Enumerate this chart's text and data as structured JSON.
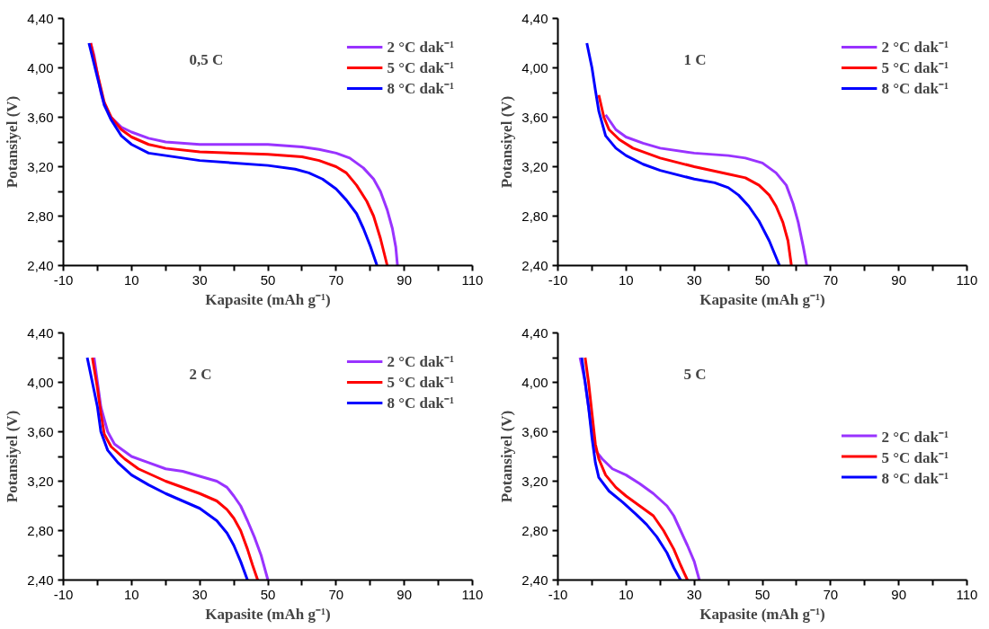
{
  "chart_data": [
    {
      "type": "line",
      "xlabel": "Kapasite (mAh g⁻¹)",
      "ylabel": "Potansiyel (V)",
      "annotations": [
        "0,5 C"
      ],
      "legend": "top right",
      "grid": false,
      "xlim": [
        -10,
        110
      ],
      "ylim": [
        2.4,
        4.4
      ],
      "xticks": [
        -10,
        {
          "value": 0,
          "label": null
        },
        10,
        {
          "value": 20,
          "label": null
        },
        30,
        {
          "value": 40,
          "label": null
        },
        50,
        {
          "value": 60,
          "label": null
        },
        70,
        {
          "value": 80,
          "label": null
        },
        90,
        {
          "value": 100,
          "label": null
        },
        110
      ],
      "yticks": [
        {
          "value": 2.4,
          "label": "2,40"
        },
        {
          "value": 2.6,
          "label": null
        },
        {
          "value": 2.8,
          "label": "2,80"
        },
        {
          "value": 3.0,
          "label": null
        },
        {
          "value": 3.2,
          "label": "3,20"
        },
        {
          "value": 3.4,
          "label": null
        },
        {
          "value": 3.6,
          "label": "3,60"
        },
        {
          "value": 3.8,
          "label": null
        },
        {
          "value": 4.0,
          "label": "4,00"
        },
        {
          "value": 4.2,
          "label": null
        },
        {
          "value": 4.4,
          "label": "4,40"
        }
      ],
      "series": [
        {
          "name": "2 °C dak⁻¹",
          "color": "#9933ff",
          "x": [
            -2,
            -1,
            0,
            1,
            2,
            4,
            7,
            10,
            15,
            20,
            30,
            50,
            60,
            65,
            70,
            74,
            78,
            81,
            83,
            85,
            86.5,
            87.5,
            88
          ],
          "values": [
            4.2,
            4.1,
            3.95,
            3.8,
            3.7,
            3.6,
            3.52,
            3.48,
            3.43,
            3.4,
            3.38,
            3.38,
            3.36,
            3.34,
            3.31,
            3.27,
            3.19,
            3.1,
            3.0,
            2.85,
            2.7,
            2.55,
            2.4
          ]
        },
        {
          "name": "5 °C dak⁻¹",
          "color": "#ff0000",
          "x": [
            -2,
            0,
            2,
            4,
            7,
            10,
            15,
            20,
            30,
            50,
            60,
            65,
            70,
            73,
            76,
            79,
            81,
            83,
            85
          ],
          "values": [
            4.2,
            3.95,
            3.72,
            3.6,
            3.5,
            3.44,
            3.38,
            3.35,
            3.32,
            3.3,
            3.28,
            3.25,
            3.2,
            3.15,
            3.05,
            2.92,
            2.8,
            2.62,
            2.4
          ]
        },
        {
          "name": "8 °C dak⁻¹",
          "color": "#0000ff",
          "x": [
            -2.5,
            0,
            2,
            4,
            7,
            10,
            15,
            20,
            30,
            50,
            58,
            62,
            66,
            70,
            73,
            76,
            78,
            80,
            82
          ],
          "values": [
            4.2,
            3.92,
            3.7,
            3.58,
            3.45,
            3.38,
            3.31,
            3.29,
            3.25,
            3.21,
            3.18,
            3.15,
            3.1,
            3.02,
            2.93,
            2.82,
            2.7,
            2.56,
            2.4
          ]
        }
      ]
    },
    {
      "type": "line",
      "xlabel": "Kapasite (mAh g⁻¹)",
      "ylabel": "Potansiyel (V)",
      "annotations": [
        "1 C"
      ],
      "legend": "top right",
      "grid": false,
      "xlim": [
        -10,
        110
      ],
      "ylim": [
        2.4,
        4.4
      ],
      "xticks": [
        -10,
        {
          "value": 0,
          "label": null
        },
        10,
        {
          "value": 20,
          "label": null
        },
        30,
        {
          "value": 40,
          "label": null
        },
        50,
        {
          "value": 60,
          "label": null
        },
        70,
        {
          "value": 80,
          "label": null
        },
        90,
        {
          "value": 100,
          "label": null
        },
        110
      ],
      "yticks": [
        {
          "value": 2.4,
          "label": "2,40"
        },
        {
          "value": 2.6,
          "label": null
        },
        {
          "value": 2.8,
          "label": "2,80"
        },
        {
          "value": 3.0,
          "label": null
        },
        {
          "value": 3.2,
          "label": "3,20"
        },
        {
          "value": 3.4,
          "label": null
        },
        {
          "value": 3.6,
          "label": "3,60"
        },
        {
          "value": 3.8,
          "label": null
        },
        {
          "value": 4.0,
          "label": "4,00"
        },
        {
          "value": 4.2,
          "label": null
        },
        {
          "value": 4.4,
          "label": "4,40"
        }
      ],
      "series": [
        {
          "name": "2 °C dak⁻¹",
          "color": "#9933ff",
          "x": [
            4,
            7,
            10,
            15,
            20,
            30,
            40,
            45,
            50,
            54,
            57,
            59,
            60.5,
            62,
            63
          ],
          "values": [
            3.62,
            3.5,
            3.44,
            3.39,
            3.35,
            3.31,
            3.29,
            3.27,
            3.23,
            3.15,
            3.05,
            2.9,
            2.75,
            2.55,
            2.4
          ]
        },
        {
          "name": "5 °C dak⁻¹",
          "color": "#ff0000",
          "x": [
            2,
            3.5,
            5,
            8,
            12,
            20,
            30,
            40,
            45,
            49,
            52,
            54,
            56,
            57.5,
            58.5
          ],
          "values": [
            3.78,
            3.6,
            3.5,
            3.42,
            3.35,
            3.27,
            3.2,
            3.14,
            3.11,
            3.05,
            2.97,
            2.88,
            2.75,
            2.6,
            2.4
          ]
        },
        {
          "name": "8 °C dak⁻¹",
          "color": "#0000ff",
          "x": [
            -1.5,
            0,
            1,
            2,
            4,
            7,
            10,
            15,
            20,
            30,
            36,
            40,
            43,
            46,
            49,
            52,
            55
          ],
          "values": [
            4.2,
            4.0,
            3.82,
            3.65,
            3.45,
            3.35,
            3.29,
            3.22,
            3.17,
            3.1,
            3.07,
            3.03,
            2.97,
            2.88,
            2.76,
            2.6,
            2.4
          ]
        }
      ]
    },
    {
      "type": "line",
      "xlabel": "Kapasite (mAh g⁻¹)",
      "ylabel": "Potansiyel (V)",
      "annotations": [
        "2 C"
      ],
      "legend": "top right",
      "grid": false,
      "xlim": [
        -10,
        110
      ],
      "ylim": [
        2.4,
        4.4
      ],
      "xticks": [
        -10,
        {
          "value": 0,
          "label": null
        },
        10,
        {
          "value": 20,
          "label": null
        },
        30,
        {
          "value": 40,
          "label": null
        },
        50,
        {
          "value": 60,
          "label": null
        },
        70,
        {
          "value": 80,
          "label": null
        },
        90,
        {
          "value": 100,
          "label": null
        },
        110
      ],
      "yticks": [
        {
          "value": 2.4,
          "label": "2,40"
        },
        {
          "value": 2.6,
          "label": null
        },
        {
          "value": 2.8,
          "label": "2,80"
        },
        {
          "value": 3.0,
          "label": null
        },
        {
          "value": 3.2,
          "label": "3,20"
        },
        {
          "value": 3.4,
          "label": null
        },
        {
          "value": 3.6,
          "label": "3,60"
        },
        {
          "value": 3.8,
          "label": null
        },
        {
          "value": 4.0,
          "label": "4,00"
        },
        {
          "value": 4.2,
          "label": null
        },
        {
          "value": 4.4,
          "label": "4,40"
        }
      ],
      "series": [
        {
          "name": "2 °C dak⁻¹",
          "color": "#9933ff",
          "x": [
            -1,
            0,
            1,
            3,
            5,
            10,
            15,
            20,
            25,
            30,
            35,
            38,
            40,
            42,
            44,
            46,
            48,
            50
          ],
          "values": [
            4.2,
            4.0,
            3.8,
            3.6,
            3.5,
            3.4,
            3.35,
            3.3,
            3.28,
            3.24,
            3.2,
            3.15,
            3.08,
            3.0,
            2.88,
            2.75,
            2.6,
            2.4
          ]
        },
        {
          "name": "5 °C dak⁻¹",
          "color": "#ff0000",
          "x": [
            -1.5,
            0,
            1,
            2,
            4,
            8,
            12,
            20,
            30,
            35,
            38,
            40,
            42,
            44,
            45.5,
            47
          ],
          "values": [
            4.2,
            3.95,
            3.75,
            3.58,
            3.48,
            3.38,
            3.3,
            3.2,
            3.1,
            3.04,
            2.97,
            2.9,
            2.8,
            2.65,
            2.52,
            2.4
          ]
        },
        {
          "name": "8 °C dak⁻¹",
          "color": "#0000ff",
          "x": [
            -3,
            -1.5,
            0,
            1,
            3,
            6,
            10,
            15,
            20,
            25,
            30,
            35,
            38,
            40,
            42,
            44
          ],
          "values": [
            4.2,
            4.0,
            3.8,
            3.6,
            3.45,
            3.35,
            3.25,
            3.17,
            3.1,
            3.04,
            2.98,
            2.88,
            2.78,
            2.68,
            2.55,
            2.4
          ]
        }
      ]
    },
    {
      "type": "line",
      "xlabel": "Kapasite (mAh g⁻¹)",
      "ylabel": "Potansiyel (V)",
      "annotations": [
        "5 C"
      ],
      "legend": "right",
      "grid": false,
      "xlim": [
        -10,
        110
      ],
      "ylim": [
        2.4,
        4.4
      ],
      "xticks": [
        -10,
        {
          "value": 0,
          "label": null
        },
        10,
        {
          "value": 20,
          "label": null
        },
        30,
        {
          "value": 40,
          "label": null
        },
        50,
        {
          "value": 60,
          "label": null
        },
        70,
        {
          "value": 80,
          "label": null
        },
        90,
        {
          "value": 100,
          "label": null
        },
        110
      ],
      "yticks": [
        {
          "value": 2.4,
          "label": "2,40"
        },
        {
          "value": 2.6,
          "label": null
        },
        {
          "value": 2.8,
          "label": "2,80"
        },
        {
          "value": 3.0,
          "label": null
        },
        {
          "value": 3.2,
          "label": "3,20"
        },
        {
          "value": 3.4,
          "label": null
        },
        {
          "value": 3.6,
          "label": "3,60"
        },
        {
          "value": 3.8,
          "label": null
        },
        {
          "value": 4.0,
          "label": "4,00"
        },
        {
          "value": 4.2,
          "label": null
        },
        {
          "value": 4.4,
          "label": "4,40"
        }
      ],
      "series": [
        {
          "name": "2 °C dak⁻¹",
          "color": "#9933ff",
          "x": [
            -3.5,
            -2,
            -1,
            0,
            1,
            3,
            6,
            10,
            14,
            18,
            22,
            24,
            26,
            28,
            30,
            31.5
          ],
          "values": [
            4.2,
            4.0,
            3.8,
            3.6,
            3.45,
            3.38,
            3.3,
            3.25,
            3.18,
            3.1,
            3.0,
            2.92,
            2.8,
            2.68,
            2.55,
            2.4
          ]
        },
        {
          "name": "5 °C dak⁻¹",
          "color": "#ff0000",
          "x": [
            -2,
            -1,
            0,
            1,
            2,
            4,
            7,
            10,
            14,
            18,
            21,
            24,
            26,
            28
          ],
          "values": [
            4.2,
            4.0,
            3.75,
            3.5,
            3.38,
            3.25,
            3.15,
            3.08,
            3.0,
            2.92,
            2.8,
            2.65,
            2.52,
            2.4
          ]
        },
        {
          "name": "8 °C dak⁻¹",
          "color": "#0000ff",
          "x": [
            -3,
            -2,
            -1,
            0,
            1,
            2,
            5,
            9,
            13,
            16,
            19,
            22,
            24,
            26
          ],
          "values": [
            4.2,
            4.0,
            3.8,
            3.55,
            3.35,
            3.23,
            3.12,
            3.03,
            2.93,
            2.85,
            2.75,
            2.62,
            2.5,
            2.4
          ]
        }
      ]
    }
  ]
}
